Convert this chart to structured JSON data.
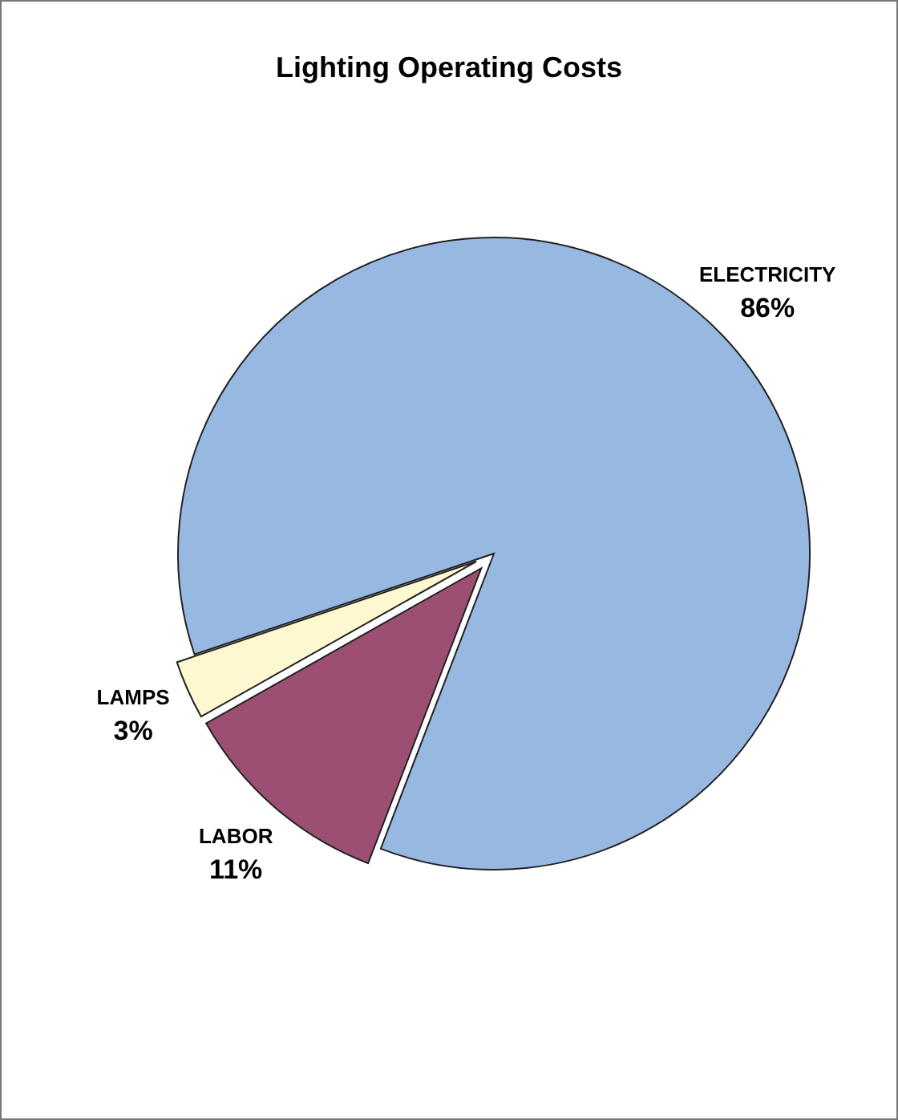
{
  "chart_data": {
    "type": "pie",
    "title": "Lighting Operating Costs",
    "categories": [
      "ELECTRICITY",
      "LABOR",
      "LAMPS"
    ],
    "values": [
      86,
      11,
      3
    ],
    "colors": [
      "#97b8e0",
      "#9c4f72",
      "#fdf8d0"
    ],
    "value_labels": [
      "86%",
      "11%",
      "3%"
    ],
    "legend": false
  }
}
